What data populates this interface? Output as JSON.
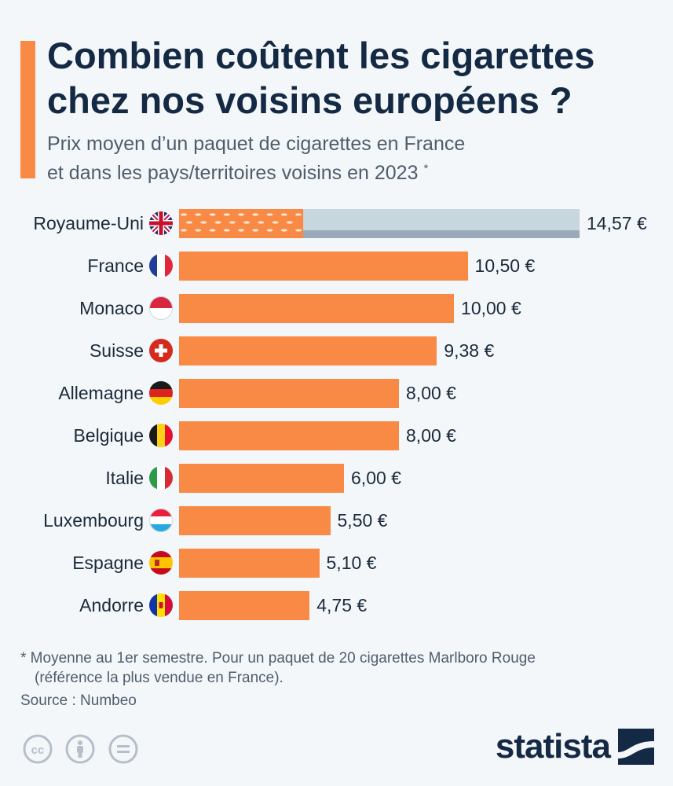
{
  "header": {
    "title_line1": "Combien coûtent les cigarettes",
    "title_line2": "chez nos voisins européens ?",
    "subtitle_line1": "Prix moyen d’un paquet de cigarettes en France",
    "subtitle_line2": "et dans les pays/territoires voisins en 2023",
    "subtitle_marker": "*"
  },
  "chart_data": {
    "type": "bar",
    "orientation": "horizontal",
    "title": "Combien coûtent les cigarettes chez nos voisins européens ?",
    "unit": "€",
    "categories": [
      "Royaume-Uni",
      "France",
      "Monaco",
      "Suisse",
      "Allemagne",
      "Belgique",
      "Italie",
      "Luxembourg",
      "Espagne",
      "Andorre"
    ],
    "values": [
      14.57,
      10.5,
      10.0,
      9.38,
      8.0,
      8.0,
      6.0,
      5.5,
      5.1,
      4.75
    ],
    "value_labels": [
      "14,57 €",
      "10,50 €",
      "10,00 €",
      "9,38 €",
      "8,00 €",
      "8,00 €",
      "6,00 €",
      "5,50 €",
      "5,10 €",
      "4,75 €"
    ],
    "flags": [
      "uk-flag",
      "france-flag",
      "monaco-flag",
      "switzerland-flag",
      "germany-flag",
      "belgium-flag",
      "italy-flag",
      "luxembourg-flag",
      "spain-flag",
      "andorra-flag"
    ],
    "xlim": [
      0,
      14.57
    ],
    "colors": {
      "bar": "#f98a45",
      "pack_filter": "#f98a45",
      "pack_body": "#c8d6de",
      "pack_shadow": "#9aaab8"
    }
  },
  "footer": {
    "note_line1": "* Moyenne au 1er semestre. Pour un paquet de 20 cigarettes Marlboro Rouge",
    "note_line2": "(référence la plus vendue en France).",
    "source": "Source : Numbeo",
    "logo": "statista",
    "license_icons": [
      "cc-icon",
      "by-icon",
      "nd-icon"
    ]
  },
  "colors": {
    "background": "#f4f7fa",
    "accent": "#f98a45",
    "title": "#142943",
    "subtitle": "#4f5d6b"
  }
}
